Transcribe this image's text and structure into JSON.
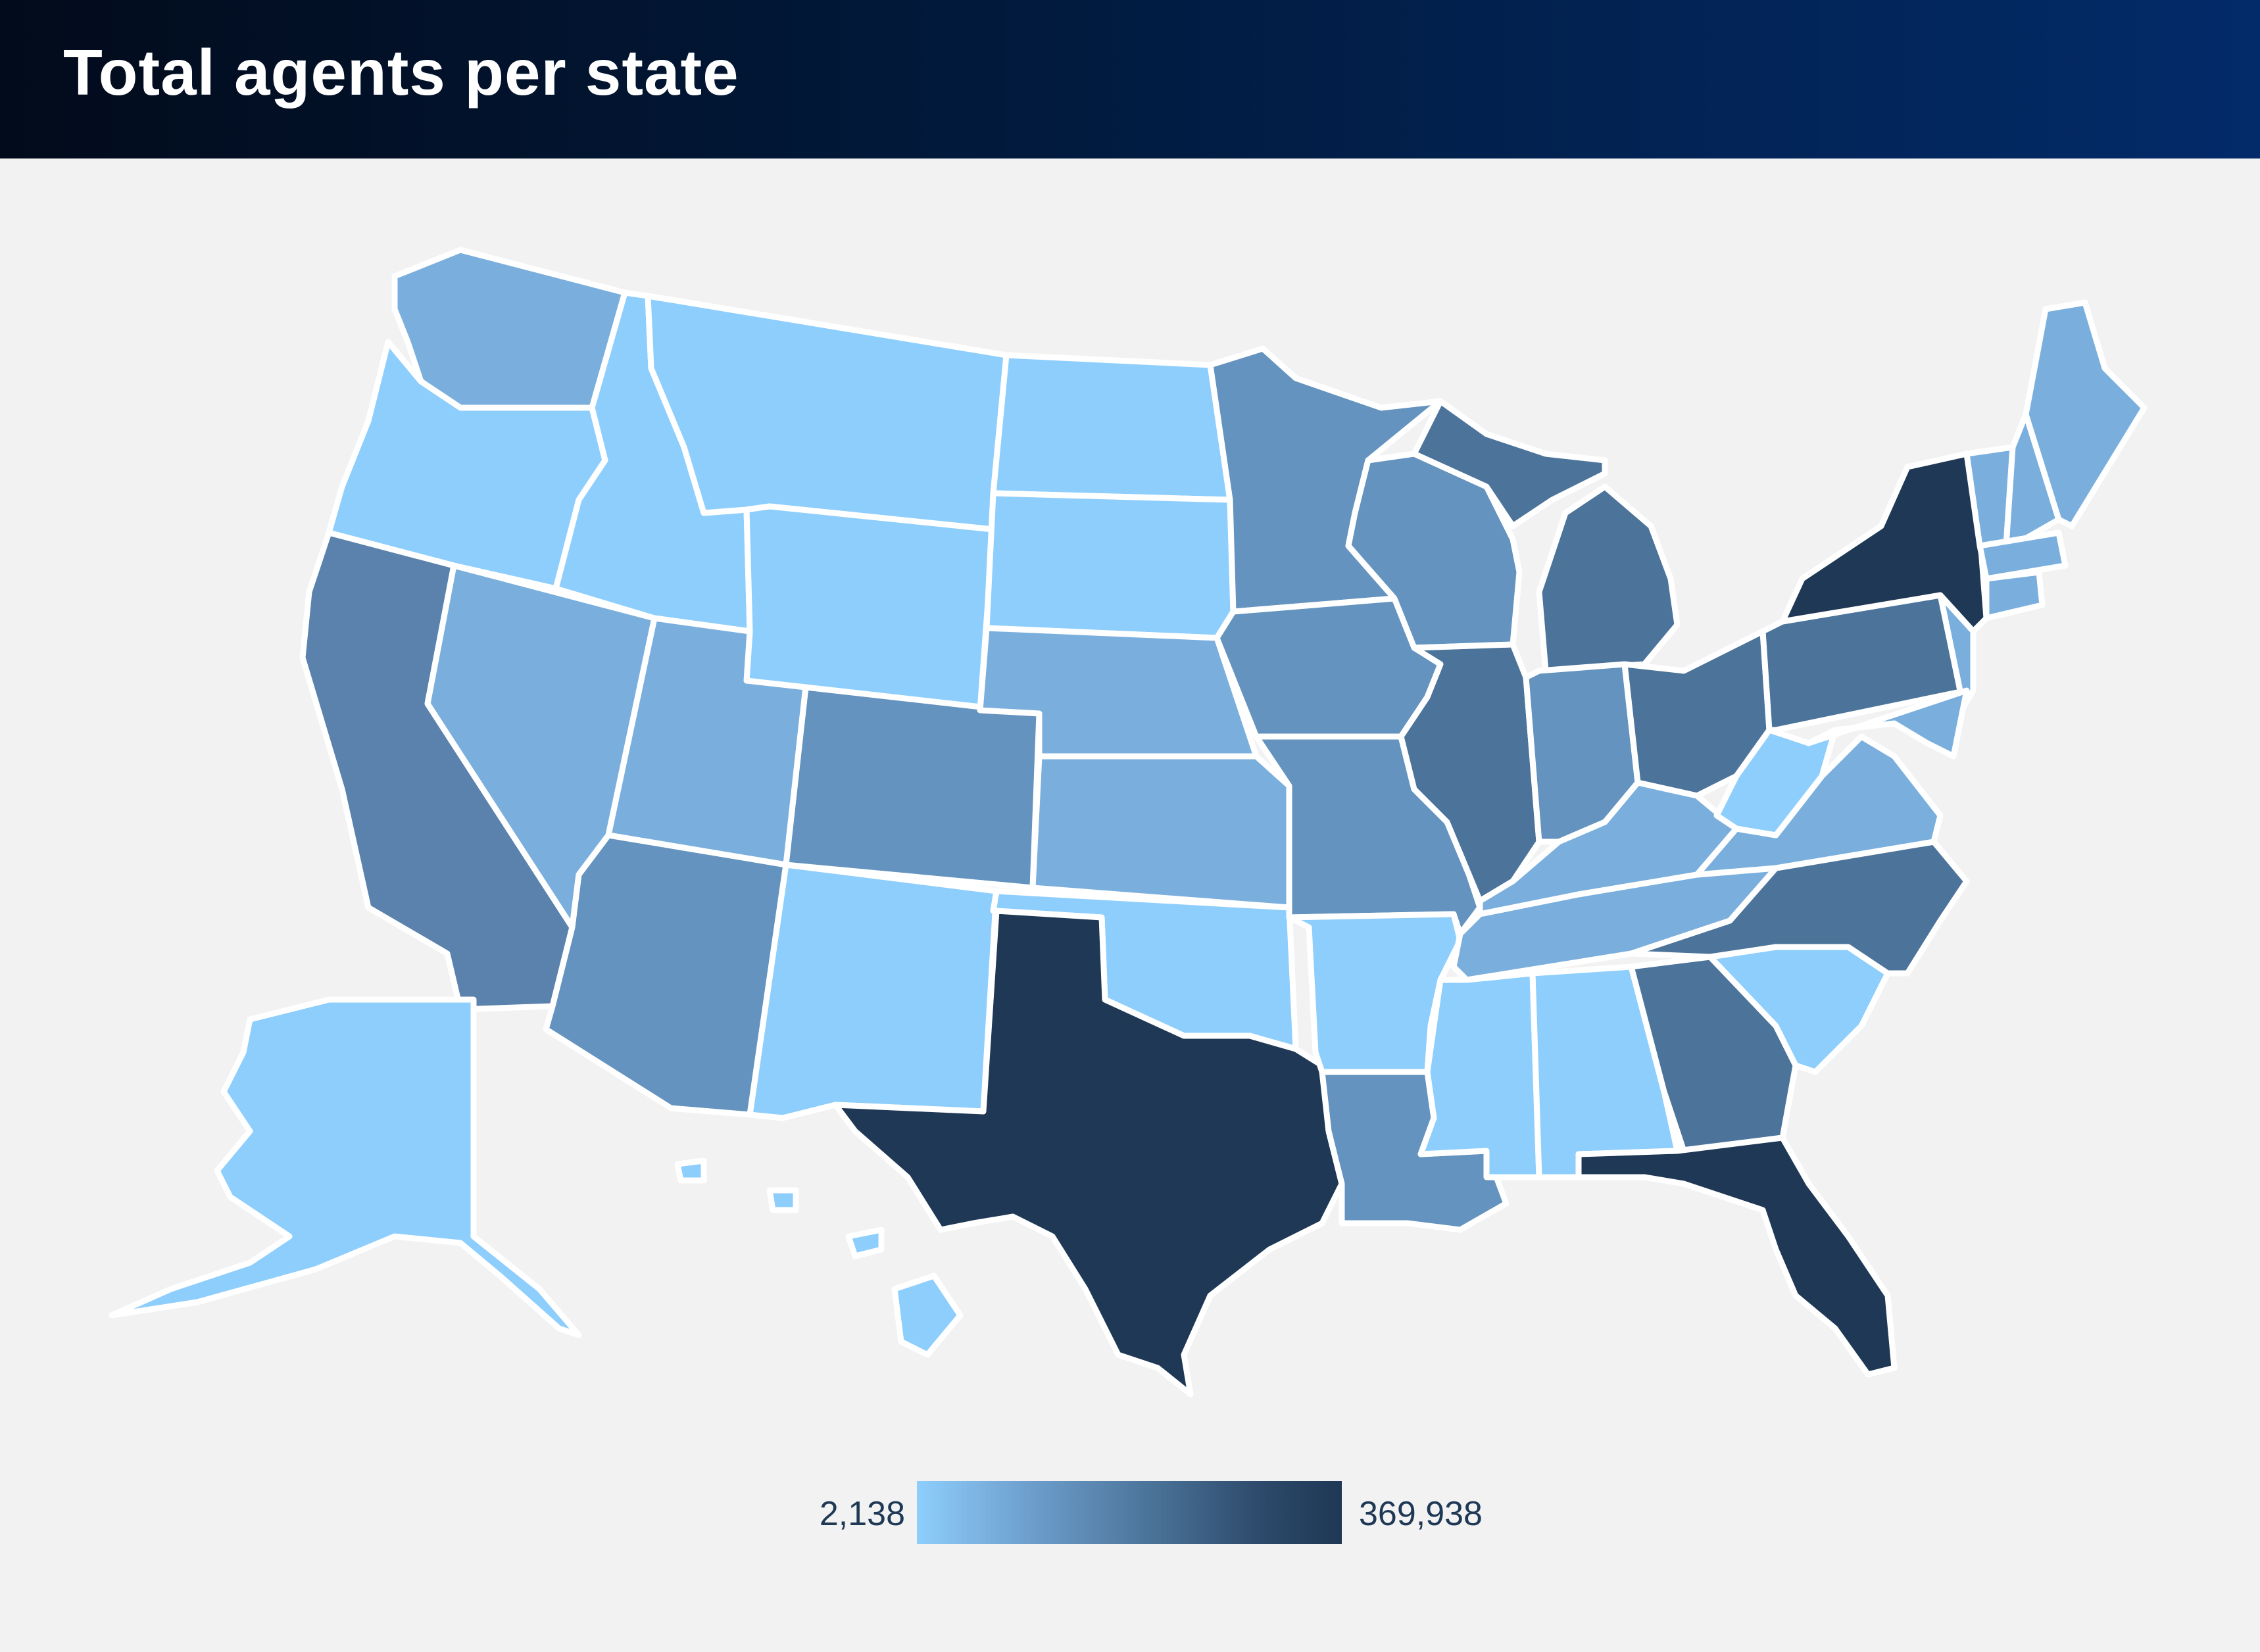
{
  "title": "Total agents per state",
  "legend": {
    "min": "2,138",
    "max": "369,938"
  },
  "colors": {
    "background": "#f2f2f2",
    "level_1": "#8ecefd",
    "level_2": "#7aafdd",
    "level_3": "#6393be",
    "level_4": "#5a82ad",
    "level_5": "#4c739a",
    "level_6": "#1e3855",
    "border": "#ffffff"
  }
}
